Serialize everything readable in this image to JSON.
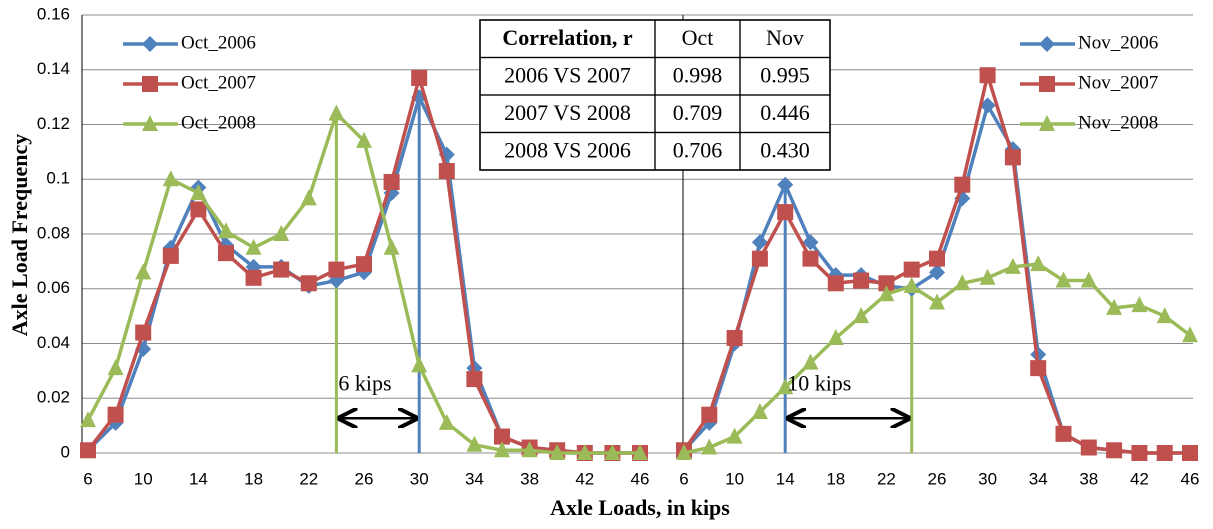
{
  "figure": {
    "y_label": "Axle Load Frequency",
    "x_label": "Axle Loads, in kips"
  },
  "table": {
    "header": [
      "Correlation, r",
      "Oct",
      "Nov"
    ],
    "rows": [
      [
        "2006 VS 2007",
        "0.998",
        "0.995"
      ],
      [
        "2007 VS 2008",
        "0.709",
        "0.446"
      ],
      [
        "2008 VS 2006",
        "0.706",
        "0.430"
      ]
    ],
    "highlight_rows": [
      1,
      2
    ],
    "highlight_color": "#ff0000"
  },
  "chart_data": [
    {
      "type": "line",
      "legend": "top-left",
      "x": [
        6,
        8,
        10,
        12,
        14,
        16,
        18,
        20,
        22,
        24,
        26,
        28,
        30,
        32,
        34,
        36,
        38,
        40,
        42,
        44,
        46
      ],
      "xlim": [
        6,
        46
      ],
      "xticks": [
        6,
        10,
        14,
        18,
        22,
        26,
        30,
        34,
        38,
        42,
        46
      ],
      "ylim": [
        0,
        0.16
      ],
      "yticks": [
        0,
        0.02,
        0.04,
        0.06,
        0.08,
        0.1,
        0.12,
        0.14,
        0.16
      ],
      "ytick_labels": true,
      "grid": true,
      "series": [
        {
          "name": "Oct_2006",
          "color": "#4f81bd",
          "marker": "diamond",
          "values": [
            0.001,
            0.011,
            0.038,
            0.075,
            0.097,
            0.076,
            0.068,
            0.068,
            0.061,
            0.063,
            0.066,
            0.095,
            0.13,
            0.109,
            0.031,
            0.006,
            0.002,
            0.001,
            0,
            0,
            0
          ]
        },
        {
          "name": "Oct_2007",
          "color": "#c0504d",
          "marker": "square",
          "values": [
            0.001,
            0.014,
            0.044,
            0.072,
            0.089,
            0.073,
            0.064,
            0.067,
            0.062,
            0.067,
            0.069,
            0.099,
            0.137,
            0.103,
            0.027,
            0.006,
            0.002,
            0.001,
            0,
            0,
            0
          ]
        },
        {
          "name": "Oct_2008",
          "color": "#9bbb59",
          "marker": "triangle",
          "values": [
            0.012,
            0.031,
            0.066,
            0.1,
            0.095,
            0.081,
            0.075,
            0.08,
            0.093,
            0.124,
            0.114,
            0.075,
            0.032,
            0.011,
            0.003,
            0.001,
            0.001,
            0,
            0,
            0,
            0
          ]
        }
      ],
      "reference_lines": [
        {
          "x": 24,
          "y": 0.124,
          "color": "#9bbb59"
        },
        {
          "x": 30,
          "y": 0.13,
          "color": "#4f81bd"
        }
      ],
      "arrow": {
        "from": 24,
        "to": 30,
        "label": "6 kips"
      }
    },
    {
      "type": "line",
      "legend": "top-right",
      "x": [
        6,
        8,
        10,
        12,
        14,
        16,
        18,
        20,
        22,
        24,
        26,
        28,
        30,
        32,
        34,
        36,
        38,
        40,
        42,
        44,
        46
      ],
      "xlim": [
        6,
        46
      ],
      "xticks": [
        6,
        10,
        14,
        18,
        22,
        26,
        30,
        34,
        38,
        42,
        46
      ],
      "ylim": [
        0,
        0.16
      ],
      "yticks": [
        0,
        0.02,
        0.04,
        0.06,
        0.08,
        0.1,
        0.12,
        0.14,
        0.16
      ],
      "ytick_labels": false,
      "grid": true,
      "series": [
        {
          "name": "Nov_2006",
          "color": "#4f81bd",
          "marker": "diamond",
          "values": [
            0.001,
            0.011,
            0.04,
            0.077,
            0.098,
            0.077,
            0.065,
            0.065,
            0.061,
            0.06,
            0.066,
            0.093,
            0.127,
            0.111,
            0.036,
            0.007,
            0.002,
            0.001,
            0,
            0,
            0
          ]
        },
        {
          "name": "Nov_2007",
          "color": "#c0504d",
          "marker": "square",
          "values": [
            0.001,
            0.014,
            0.042,
            0.071,
            0.088,
            0.071,
            0.062,
            0.063,
            0.062,
            0.067,
            0.071,
            0.098,
            0.138,
            0.108,
            0.031,
            0.007,
            0.002,
            0.001,
            0,
            0,
            0
          ]
        },
        {
          "name": "Nov_2008",
          "color": "#9bbb59",
          "marker": "triangle",
          "values": [
            0,
            0.002,
            0.006,
            0.015,
            0.024,
            0.033,
            0.042,
            0.05,
            0.058,
            0.061,
            0.055,
            0.062,
            0.064,
            0.068,
            0.069,
            0.063,
            0.063,
            0.053,
            0.054,
            0.05,
            0.043
          ]
        }
      ],
      "reference_lines": [
        {
          "x": 14,
          "y": 0.098,
          "color": "#4f81bd"
        },
        {
          "x": 24,
          "y": 0.061,
          "color": "#9bbb59"
        }
      ],
      "arrow": {
        "from": 14,
        "to": 24,
        "label": "10 kips"
      }
    }
  ]
}
